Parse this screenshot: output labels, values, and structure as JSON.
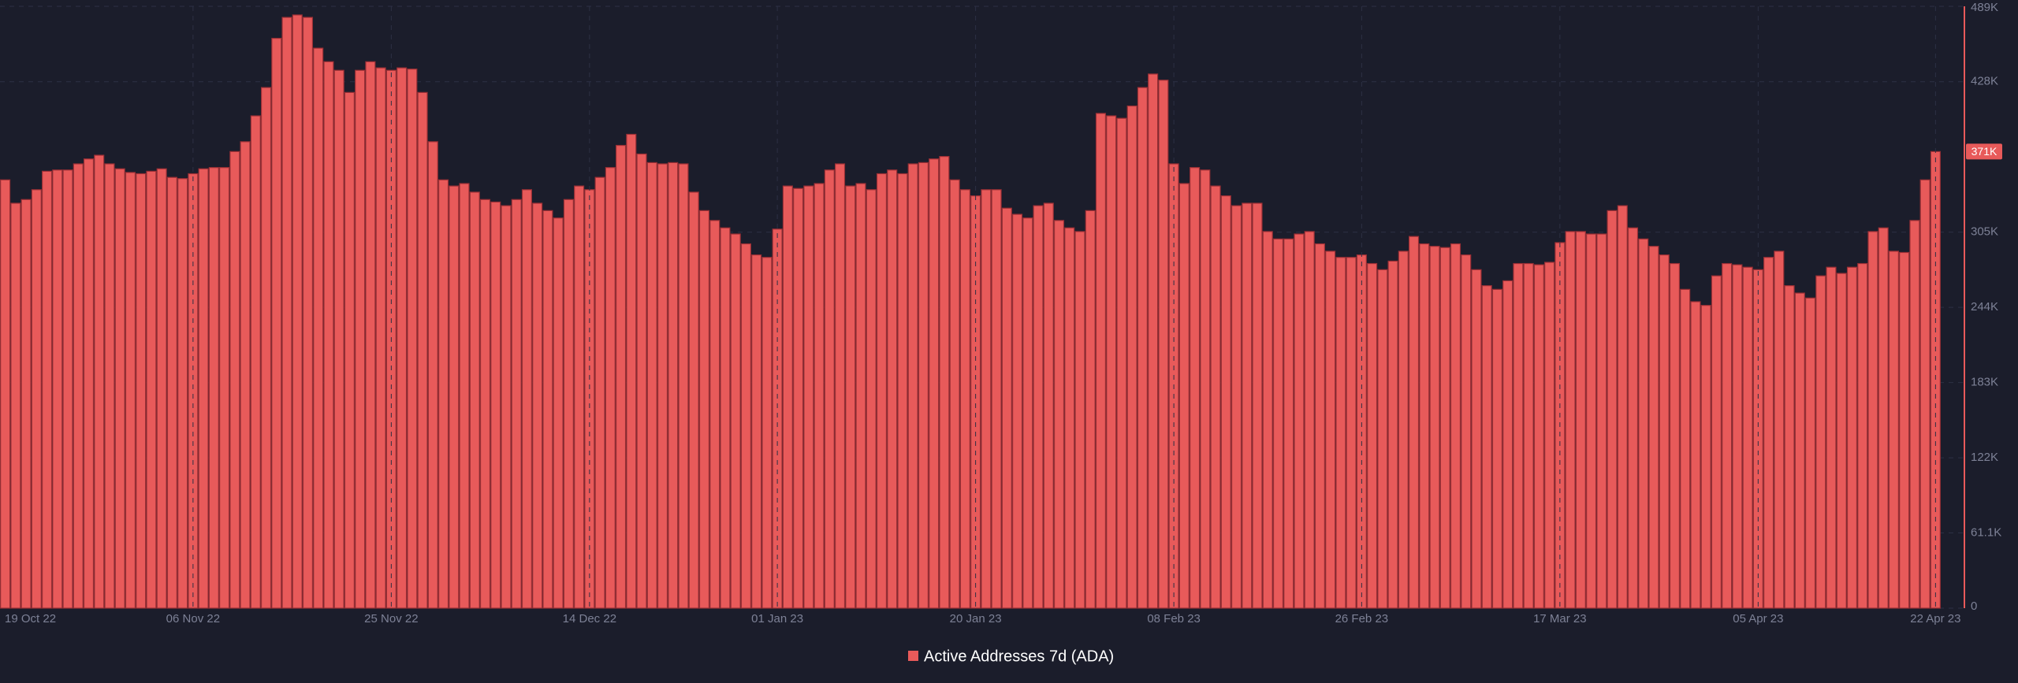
{
  "chart_data": {
    "type": "bar",
    "legend": "Active Addresses 7d (ADA)",
    "color": "#e85a5a",
    "categories": [
      "19 Oct 22",
      null,
      null,
      null,
      null,
      null,
      null,
      null,
      null,
      null,
      null,
      null,
      null,
      null,
      null,
      null,
      null,
      null,
      "06 Nov 22",
      null,
      null,
      null,
      null,
      null,
      null,
      null,
      null,
      null,
      null,
      null,
      null,
      null,
      null,
      null,
      null,
      null,
      null,
      "25 Nov 22",
      null,
      null,
      null,
      null,
      null,
      null,
      null,
      null,
      null,
      null,
      null,
      null,
      null,
      null,
      null,
      null,
      null,
      null,
      "14 Dec 22",
      null,
      null,
      null,
      null,
      null,
      null,
      null,
      null,
      null,
      null,
      null,
      null,
      null,
      null,
      null,
      null,
      null,
      "01 Jan 23",
      null,
      null,
      null,
      null,
      null,
      null,
      null,
      null,
      null,
      null,
      null,
      null,
      null,
      null,
      null,
      null,
      null,
      null,
      "20 Jan 23",
      null,
      null,
      null,
      null,
      null,
      null,
      null,
      null,
      null,
      null,
      null,
      null,
      null,
      null,
      null,
      null,
      null,
      null,
      "08 Feb 23",
      null,
      null,
      null,
      null,
      null,
      null,
      null,
      null,
      null,
      null,
      null,
      null,
      null,
      null,
      null,
      null,
      null,
      "26 Feb 23",
      null,
      null,
      null,
      null,
      null,
      null,
      null,
      null,
      null,
      null,
      null,
      null,
      null,
      null,
      null,
      null,
      null,
      null,
      "17 Mar 23",
      null,
      null,
      null,
      null,
      null,
      null,
      null,
      null,
      null,
      null,
      null,
      null,
      null,
      null,
      null,
      null,
      null,
      null,
      "05 Apr 23",
      null,
      null,
      null,
      null,
      null,
      null,
      null,
      null,
      null,
      null,
      null,
      null,
      null,
      null,
      null,
      null,
      "22 Apr 23"
    ],
    "values": [
      348000,
      329000,
      332000,
      340000,
      355000,
      356000,
      356000,
      361000,
      365000,
      368000,
      361000,
      357000,
      354000,
      353000,
      355000,
      357000,
      350000,
      349000,
      353000,
      357000,
      358000,
      358000,
      371000,
      379000,
      400000,
      423000,
      463000,
      480000,
      482000,
      480000,
      455000,
      444000,
      437000,
      419000,
      437000,
      444000,
      439000,
      437000,
      439000,
      438000,
      419000,
      379000,
      348000,
      343000,
      345000,
      338000,
      332000,
      330000,
      327000,
      332000,
      340000,
      329000,
      323000,
      317000,
      332000,
      343000,
      340000,
      350000,
      358000,
      376000,
      385000,
      369000,
      362000,
      361000,
      362000,
      361000,
      338000,
      323000,
      315000,
      309000,
      304000,
      296000,
      287000,
      285000,
      308000,
      343000,
      341000,
      343000,
      345000,
      356000,
      361000,
      343000,
      345000,
      340000,
      353000,
      356000,
      353000,
      361000,
      362000,
      365000,
      367000,
      348000,
      340000,
      335000,
      340000,
      340000,
      325000,
      320000,
      317000,
      327000,
      329000,
      315000,
      309000,
      306000,
      323000,
      402000,
      400000,
      398000,
      408000,
      423000,
      434000,
      429000,
      361000,
      345000,
      358000,
      356000,
      343000,
      335000,
      327000,
      329000,
      329000,
      306000,
      300000,
      300000,
      304000,
      306000,
      296000,
      290000,
      285000,
      285000,
      287000,
      280000,
      275000,
      282000,
      290000,
      302000,
      296000,
      294000,
      293000,
      296000,
      287000,
      275000,
      262000,
      259000,
      266000,
      280000,
      280000,
      279000,
      281000,
      297000,
      306000,
      306000,
      304000,
      304000,
      323000,
      327000,
      309000,
      300000,
      294000,
      287000,
      280000,
      259000,
      249000,
      246000,
      270000,
      280000,
      279000,
      277000,
      275000,
      285000,
      290000,
      262000,
      256000,
      252000,
      270000,
      277000,
      272000,
      277000,
      280000,
      306000,
      309000,
      290000,
      289000,
      315000,
      348000,
      371000
    ],
    "current_value_label": {
      "value": 371000,
      "label": "371K"
    },
    "ylim": [
      0,
      489000
    ],
    "yticks": [
      0,
      {
        "value": 61100,
        "label": "61.1K"
      },
      {
        "value": 122200,
        "label": "122K"
      },
      {
        "value": 183300,
        "label": "183K"
      },
      {
        "value": 244400,
        "label": "244K"
      },
      {
        "value": 305500,
        "label": "305K"
      },
      {
        "value": 427700,
        "label": "428K"
      },
      {
        "value": 489000,
        "label": "489K"
      }
    ],
    "grid": true
  }
}
